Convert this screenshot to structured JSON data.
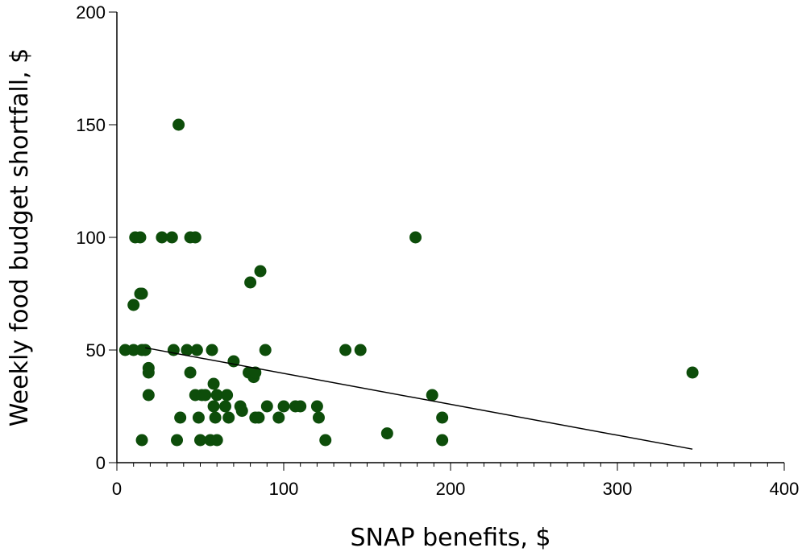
{
  "chart_data": {
    "type": "scatter",
    "title": "",
    "xlabel": "SNAP benefits, $",
    "ylabel": "Weekly food budget shortfall, $",
    "xlim": [
      0,
      400
    ],
    "ylim": [
      0,
      200
    ],
    "x_ticks": [
      0,
      100,
      200,
      300,
      400
    ],
    "y_ticks": [
      0,
      50,
      100,
      150,
      200
    ],
    "grid": false,
    "point_color": "#0d4d0a",
    "points": [
      [
        5,
        50
      ],
      [
        10,
        50
      ],
      [
        10,
        70
      ],
      [
        11,
        100
      ],
      [
        14,
        100
      ],
      [
        14,
        75
      ],
      [
        15,
        75
      ],
      [
        15,
        10
      ],
      [
        15,
        50
      ],
      [
        17,
        50
      ],
      [
        19,
        42
      ],
      [
        19,
        40
      ],
      [
        19,
        30
      ],
      [
        37,
        150
      ],
      [
        27,
        100
      ],
      [
        33,
        100
      ],
      [
        44,
        100
      ],
      [
        47,
        100
      ],
      [
        34,
        50
      ],
      [
        36,
        10
      ],
      [
        38,
        20
      ],
      [
        42,
        50
      ],
      [
        44,
        40
      ],
      [
        47,
        30
      ],
      [
        48,
        50
      ],
      [
        49,
        20
      ],
      [
        50,
        10
      ],
      [
        51,
        30
      ],
      [
        53,
        30
      ],
      [
        56,
        10
      ],
      [
        57,
        50
      ],
      [
        58,
        35
      ],
      [
        58,
        25
      ],
      [
        60,
        30
      ],
      [
        59,
        20
      ],
      [
        60,
        10
      ],
      [
        65,
        25
      ],
      [
        66,
        30
      ],
      [
        67,
        20
      ],
      [
        70,
        45
      ],
      [
        74,
        25
      ],
      [
        75,
        23
      ],
      [
        80,
        80
      ],
      [
        86,
        85
      ],
      [
        79,
        40
      ],
      [
        82,
        38
      ],
      [
        83,
        40
      ],
      [
        83,
        20
      ],
      [
        85,
        20
      ],
      [
        89,
        50
      ],
      [
        90,
        25
      ],
      [
        97,
        20
      ],
      [
        100,
        25
      ],
      [
        107,
        25
      ],
      [
        110,
        25
      ],
      [
        120,
        25
      ],
      [
        121,
        20
      ],
      [
        125,
        10
      ],
      [
        137,
        50
      ],
      [
        146,
        50
      ],
      [
        162,
        13
      ],
      [
        179,
        100
      ],
      [
        189,
        30
      ],
      [
        195,
        20
      ],
      [
        195,
        10
      ],
      [
        345,
        40
      ]
    ],
    "trendline": {
      "x": [
        17,
        345
      ],
      "y": [
        51,
        6
      ]
    }
  }
}
